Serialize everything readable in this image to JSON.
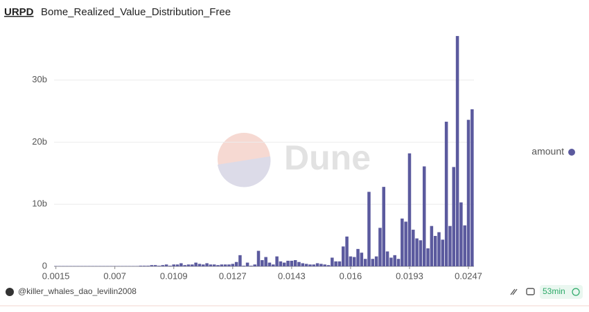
{
  "header": {
    "query": "URPD",
    "title": "Bome_Realized_Value_Distribution_Free"
  },
  "watermark": "Dune",
  "footer": {
    "author": "@killer_whales_dao_levilin2008",
    "age": "53min"
  },
  "chart_data": {
    "type": "bar",
    "categories": [
      "0.0015",
      null,
      null,
      null,
      null,
      null,
      null,
      null,
      null,
      null,
      null,
      null,
      null,
      null,
      null,
      null,
      "0.007",
      null,
      null,
      null,
      null,
      null,
      null,
      null,
      null,
      null,
      null,
      null,
      null,
      null,
      null,
      null,
      "0.0109",
      null,
      null,
      null,
      null,
      null,
      null,
      null,
      null,
      null,
      null,
      null,
      null,
      null,
      null,
      null,
      "0.0127",
      null,
      null,
      null,
      null,
      null,
      null,
      null,
      null,
      null,
      null,
      null,
      null,
      null,
      null,
      null,
      "0.0143",
      null,
      null,
      null,
      null,
      null,
      null,
      null,
      null,
      null,
      null,
      null,
      null,
      null,
      null,
      null,
      "0.016",
      null,
      null,
      null,
      null,
      null,
      null,
      null,
      null,
      null,
      null,
      null,
      null,
      null,
      null,
      null,
      "0.0193",
      null,
      null,
      null,
      null,
      null,
      null,
      null,
      null,
      null,
      null,
      null,
      null,
      null,
      null,
      null,
      "0.0247",
      null
    ],
    "series": [
      {
        "name": "amount",
        "color": "#5b5a9e",
        "values": [
          0.05,
          0.05,
          0.05,
          0.05,
          0.05,
          0.05,
          0.05,
          0.05,
          0.05,
          0.05,
          0.05,
          0.05,
          0.05,
          0.05,
          0.05,
          0.05,
          0.05,
          0.05,
          0.05,
          0.05,
          0.05,
          0.05,
          0.05,
          0.1,
          0.1,
          0.1,
          0.2,
          0.2,
          0.1,
          0.2,
          0.3,
          0.1,
          0.3,
          0.3,
          0.5,
          0.2,
          0.3,
          0.3,
          0.6,
          0.4,
          0.3,
          0.5,
          0.3,
          0.3,
          0.2,
          0.3,
          0.3,
          0.3,
          0.4,
          0.7,
          1.8,
          0.1,
          0.6,
          0.1,
          0.3,
          2.5,
          1.0,
          1.5,
          0.6,
          0.3,
          1.6,
          0.8,
          0.6,
          0.9,
          0.9,
          1.0,
          0.7,
          0.5,
          0.4,
          0.3,
          0.3,
          0.5,
          0.4,
          0.3,
          0.2,
          1.4,
          0.8,
          0.8,
          3.2,
          4.8,
          1.6,
          1.5,
          2.8,
          2.2,
          1.2,
          12.0,
          1.2,
          1.6,
          6.2,
          12.8,
          2.4,
          1.4,
          1.8,
          1.2,
          7.7,
          7.2,
          18.2,
          5.9,
          4.5,
          4.2,
          16.1,
          2.9,
          6.5,
          4.9,
          5.5,
          4.3,
          23.3,
          6.5,
          16.0,
          37.1,
          10.3,
          6.6,
          23.6,
          25.3
        ]
      }
    ],
    "ylim": [
      0,
      38
    ],
    "yticks": [
      0,
      {
        "value": 10,
        "label": "10b"
      },
      {
        "value": 20,
        "label": "20b"
      },
      {
        "value": 30,
        "label": "30b"
      }
    ],
    "grid": true,
    "legend": "right"
  }
}
